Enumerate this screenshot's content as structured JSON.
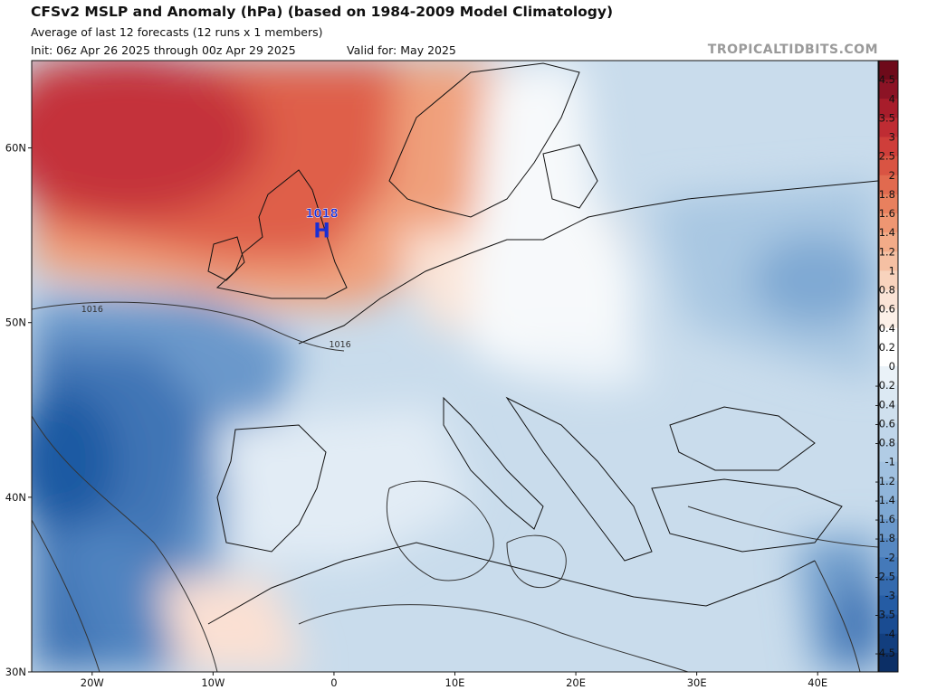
{
  "header": {
    "title": "CFSv2 MSLP and Anomaly (hPa) (based on 1984-2009 Model Climatology)",
    "subtitle": "Average of last 12 forecasts (12 runs x 1 members)",
    "init": "Init: 06z Apr 26 2025 through 00z Apr 29 2025",
    "valid": "Valid for: May 2025",
    "brand": "TROPICALTIDBITS.COM"
  },
  "map": {
    "extent": {
      "lon": [
        -25,
        45
      ],
      "lat": [
        30,
        65
      ]
    },
    "lat_ticks": [
      {
        "value": 60,
        "label": "60N"
      },
      {
        "value": 50,
        "label": "50N"
      },
      {
        "value": 40,
        "label": "40N"
      },
      {
        "value": 30,
        "label": "30N"
      }
    ],
    "lon_ticks": [
      {
        "value": -20,
        "label": "20W"
      },
      {
        "value": -10,
        "label": "10W"
      },
      {
        "value": 0,
        "label": "0"
      },
      {
        "value": 10,
        "label": "10E"
      },
      {
        "value": 20,
        "label": "20E"
      },
      {
        "value": 30,
        "label": "30E"
      },
      {
        "value": 40,
        "label": "40E"
      }
    ],
    "high": {
      "label": "H",
      "value": "1018",
      "lon": -1,
      "lat": 55.5,
      "color": "#1a2fd4"
    },
    "isobar_labels": [
      {
        "text": "1016",
        "lon": -20,
        "lat": 50.6
      },
      {
        "text": "1016",
        "lon": 0.5,
        "lat": 48.6
      }
    ]
  },
  "colorbar": {
    "labels": [
      "4.5",
      "4",
      "3.5",
      "3",
      "2.5",
      "2",
      "1.8",
      "1.6",
      "1.4",
      "1.2",
      "1",
      "0.8",
      "0.6",
      "0.4",
      "0.2",
      "0",
      "-0.2",
      "-0.4",
      "-0.6",
      "-0.8",
      "-1",
      "-1.2",
      "-1.4",
      "-1.6",
      "-1.8",
      "-2",
      "-2.5",
      "-3",
      "-3.5",
      "-4",
      "-4.5"
    ],
    "colors": [
      "#6e0a1a",
      "#8c1325",
      "#a81d2b",
      "#bf2c33",
      "#cf3e3a",
      "#d95443",
      "#e16a4f",
      "#e8805e",
      "#ee9672",
      "#f2ab88",
      "#f5c0a3",
      "#f8d3bd",
      "#fae3d6",
      "#fcf0e8",
      "#ffffff",
      "#ffffff",
      "#eaf2f8",
      "#dce9f3",
      "#cfe0ee",
      "#c0d6ea",
      "#b1cce5",
      "#a1c1e0",
      "#90b5da",
      "#7ea8d3",
      "#6a98cb",
      "#5688c2",
      "#4479b9",
      "#346aae",
      "#255ca4",
      "#1a4c92",
      "#123e7e",
      "#0c2f66"
    ]
  }
}
